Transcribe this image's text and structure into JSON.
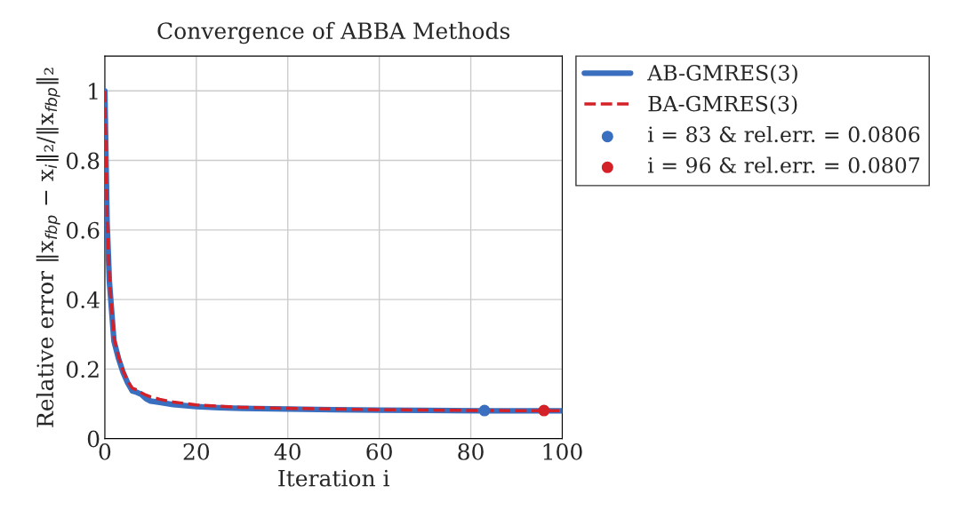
{
  "chart_data": {
    "type": "line",
    "title": "Convergence of ABBA Methods",
    "xlabel": "Iteration i",
    "ylabel": "Relative error ‖x$_{fbp}$ − x$_{i}$‖₂/‖x$_{fbp}$‖₂",
    "xlim": [
      0,
      100
    ],
    "ylim": [
      0,
      1.1
    ],
    "xticks": [
      0,
      20,
      40,
      60,
      80,
      100
    ],
    "yticks": [
      0,
      0.2,
      0.4,
      0.6,
      0.8,
      1
    ],
    "grid": true,
    "legend": "right",
    "series": [
      {
        "name": "AB-GMRES(3)",
        "color": "#3a6fc0",
        "line_style": "solid",
        "x": [
          0,
          0.5,
          1,
          2,
          3,
          4,
          5,
          6,
          7,
          8,
          9,
          10,
          12,
          15,
          20,
          25,
          30,
          40,
          50,
          60,
          70,
          83,
          90,
          100
        ],
        "values": [
          1.0,
          0.62,
          0.45,
          0.28,
          0.23,
          0.19,
          0.16,
          0.137,
          0.133,
          0.127,
          0.115,
          0.108,
          0.104,
          0.098,
          0.092,
          0.089,
          0.087,
          0.085,
          0.083,
          0.082,
          0.081,
          0.08,
          0.08,
          0.08
        ]
      },
      {
        "name": "BA-GMRES(3)",
        "color": "#d42027",
        "line_style": "dashed",
        "x": [
          0,
          0.5,
          1,
          2,
          3,
          4,
          5,
          6,
          7,
          8,
          9,
          10,
          12,
          15,
          20,
          25,
          30,
          40,
          50,
          60,
          70,
          80,
          96,
          100
        ],
        "values": [
          1.0,
          0.63,
          0.46,
          0.29,
          0.235,
          0.195,
          0.165,
          0.145,
          0.14,
          0.132,
          0.125,
          0.12,
          0.113,
          0.105,
          0.097,
          0.093,
          0.09,
          0.087,
          0.085,
          0.083,
          0.082,
          0.081,
          0.08,
          0.08
        ]
      },
      {
        "name": "i = 83 & rel.err. = 0.0806",
        "type": "scatter",
        "color": "#3a6fc0",
        "marker": "circle",
        "x": [
          83
        ],
        "values": [
          0.0806
        ]
      },
      {
        "name": "i = 96 & rel.err. = 0.0807",
        "type": "scatter",
        "color": "#d42027",
        "marker": "circle",
        "x": [
          96
        ],
        "values": [
          0.0807
        ]
      }
    ]
  }
}
